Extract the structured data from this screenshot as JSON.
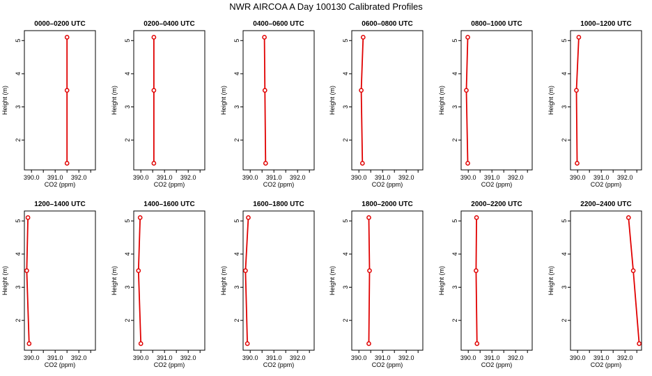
{
  "figure": {
    "title": "NWR AIRCOA A  Day 100130  Calibrated Profiles"
  },
  "colors": {
    "series": "#e00000",
    "axis": "#000000",
    "background": "#ffffff"
  },
  "chart_data": [
    {
      "type": "line",
      "title": "0000–0200 UTC",
      "xlabel": "CO2 (ppm)",
      "ylabel": "Height (m)",
      "xlim": [
        389.7,
        392.7
      ],
      "ylim": [
        1.1,
        5.3
      ],
      "xticks": [
        "390.0",
        "391.0",
        "392.0"
      ],
      "yticks": [
        "2",
        "3",
        "4",
        "5"
      ],
      "grid": false,
      "series": [
        {
          "points": [
            {
              "x": 391.5,
              "y": 1.3
            },
            {
              "x": 391.5,
              "y": 3.5
            },
            {
              "x": 391.5,
              "y": 5.1
            }
          ]
        }
      ]
    },
    {
      "type": "line",
      "title": "0200–0400 UTC",
      "xlabel": "CO2 (ppm)",
      "ylabel": "Height (m)",
      "xlim": [
        389.7,
        392.7
      ],
      "ylim": [
        1.1,
        5.3
      ],
      "xticks": [
        "390.0",
        "391.0",
        "392.0"
      ],
      "yticks": [
        "2",
        "3",
        "4",
        "5"
      ],
      "grid": false,
      "series": [
        {
          "points": [
            {
              "x": 390.55,
              "y": 1.3
            },
            {
              "x": 390.55,
              "y": 3.5
            },
            {
              "x": 390.55,
              "y": 5.1
            }
          ]
        }
      ]
    },
    {
      "type": "line",
      "title": "0400–0600 UTC",
      "xlabel": "CO2 (ppm)",
      "ylabel": "Height (m)",
      "xlim": [
        389.7,
        392.7
      ],
      "ylim": [
        1.1,
        5.3
      ],
      "xticks": [
        "390.0",
        "391.0",
        "392.0"
      ],
      "yticks": [
        "2",
        "3",
        "4",
        "5"
      ],
      "grid": false,
      "series": [
        {
          "points": [
            {
              "x": 390.65,
              "y": 1.3
            },
            {
              "x": 390.62,
              "y": 3.5
            },
            {
              "x": 390.6,
              "y": 5.1
            }
          ]
        }
      ]
    },
    {
      "type": "line",
      "title": "0600–0800 UTC",
      "xlabel": "CO2 (ppm)",
      "ylabel": "Height (m)",
      "xlim": [
        389.7,
        392.7
      ],
      "ylim": [
        1.1,
        5.3
      ],
      "xticks": [
        "390.0",
        "391.0",
        "392.0"
      ],
      "yticks": [
        "2",
        "3",
        "4",
        "5"
      ],
      "grid": false,
      "series": [
        {
          "points": [
            {
              "x": 390.15,
              "y": 1.3
            },
            {
              "x": 390.1,
              "y": 3.5
            },
            {
              "x": 390.18,
              "y": 5.1
            }
          ]
        }
      ]
    },
    {
      "type": "line",
      "title": "0800–1000 UTC",
      "xlabel": "CO2 (ppm)",
      "ylabel": "Height (m)",
      "xlim": [
        389.7,
        392.7
      ],
      "ylim": [
        1.1,
        5.3
      ],
      "xticks": [
        "390.0",
        "391.0",
        "392.0"
      ],
      "yticks": [
        "2",
        "3",
        "4",
        "5"
      ],
      "grid": false,
      "series": [
        {
          "points": [
            {
              "x": 389.98,
              "y": 1.3
            },
            {
              "x": 389.92,
              "y": 3.5
            },
            {
              "x": 389.98,
              "y": 5.1
            }
          ]
        }
      ]
    },
    {
      "type": "line",
      "title": "1000–1200 UTC",
      "xlabel": "CO2 (ppm)",
      "ylabel": "Height (m)",
      "xlim": [
        389.7,
        392.7
      ],
      "ylim": [
        1.1,
        5.3
      ],
      "xticks": [
        "390.0",
        "391.0",
        "392.0"
      ],
      "yticks": [
        "2",
        "3",
        "4",
        "5"
      ],
      "grid": false,
      "series": [
        {
          "points": [
            {
              "x": 389.98,
              "y": 1.3
            },
            {
              "x": 389.95,
              "y": 3.5
            },
            {
              "x": 390.05,
              "y": 5.1
            }
          ]
        }
      ]
    },
    {
      "type": "line",
      "title": "1200–1400 UTC",
      "xlabel": "CO2 (ppm)",
      "ylabel": "Height (m)",
      "xlim": [
        389.7,
        392.7
      ],
      "ylim": [
        1.1,
        5.3
      ],
      "xticks": [
        "390.0",
        "391.0",
        "392.0"
      ],
      "yticks": [
        "2",
        "3",
        "4",
        "5"
      ],
      "grid": false,
      "series": [
        {
          "points": [
            {
              "x": 389.9,
              "y": 1.3
            },
            {
              "x": 389.8,
              "y": 3.5
            },
            {
              "x": 389.85,
              "y": 5.1
            }
          ]
        }
      ]
    },
    {
      "type": "line",
      "title": "1400–1600 UTC",
      "xlabel": "CO2 (ppm)",
      "ylabel": "Height (m)",
      "xlim": [
        389.7,
        392.7
      ],
      "ylim": [
        1.1,
        5.3
      ],
      "xticks": [
        "390.0",
        "391.0",
        "392.0"
      ],
      "yticks": [
        "2",
        "3",
        "4",
        "5"
      ],
      "grid": false,
      "series": [
        {
          "points": [
            {
              "x": 390.0,
              "y": 1.3
            },
            {
              "x": 389.9,
              "y": 3.5
            },
            {
              "x": 389.97,
              "y": 5.1
            }
          ]
        }
      ]
    },
    {
      "type": "line",
      "title": "1600–1800 UTC",
      "xlabel": "CO2 (ppm)",
      "ylabel": "Height (m)",
      "xlim": [
        389.7,
        392.7
      ],
      "ylim": [
        1.1,
        5.3
      ],
      "xticks": [
        "390.0",
        "391.0",
        "392.0"
      ],
      "yticks": [
        "2",
        "3",
        "4",
        "5"
      ],
      "grid": false,
      "series": [
        {
          "points": [
            {
              "x": 389.88,
              "y": 1.3
            },
            {
              "x": 389.8,
              "y": 3.5
            },
            {
              "x": 389.92,
              "y": 5.1
            }
          ]
        }
      ]
    },
    {
      "type": "line",
      "title": "1800–2000 UTC",
      "xlabel": "CO2 (ppm)",
      "ylabel": "Height (m)",
      "xlim": [
        389.7,
        392.7
      ],
      "ylim": [
        1.1,
        5.3
      ],
      "xticks": [
        "390.0",
        "391.0",
        "392.0"
      ],
      "yticks": [
        "2",
        "3",
        "4",
        "5"
      ],
      "grid": false,
      "series": [
        {
          "points": [
            {
              "x": 390.42,
              "y": 1.3
            },
            {
              "x": 390.45,
              "y": 3.5
            },
            {
              "x": 390.42,
              "y": 5.1
            }
          ]
        }
      ]
    },
    {
      "type": "line",
      "title": "2000–2200 UTC",
      "xlabel": "CO2 (ppm)",
      "ylabel": "Height (m)",
      "xlim": [
        389.7,
        392.7
      ],
      "ylim": [
        1.1,
        5.3
      ],
      "xticks": [
        "390.0",
        "391.0",
        "392.0"
      ],
      "yticks": [
        "2",
        "3",
        "4",
        "5"
      ],
      "grid": false,
      "series": [
        {
          "points": [
            {
              "x": 390.37,
              "y": 1.3
            },
            {
              "x": 390.33,
              "y": 3.5
            },
            {
              "x": 390.35,
              "y": 5.1
            }
          ]
        }
      ]
    },
    {
      "type": "line",
      "title": "2200–2400 UTC",
      "xlabel": "CO2 (ppm)",
      "ylabel": "Height (m)",
      "xlim": [
        389.7,
        392.7
      ],
      "ylim": [
        1.1,
        5.3
      ],
      "xticks": [
        "390.0",
        "391.0",
        "392.0"
      ],
      "yticks": [
        "2",
        "3",
        "4",
        "5"
      ],
      "grid": false,
      "series": [
        {
          "points": [
            {
              "x": 392.6,
              "y": 1.3
            },
            {
              "x": 392.35,
              "y": 3.5
            },
            {
              "x": 392.15,
              "y": 5.1
            }
          ]
        }
      ]
    }
  ]
}
